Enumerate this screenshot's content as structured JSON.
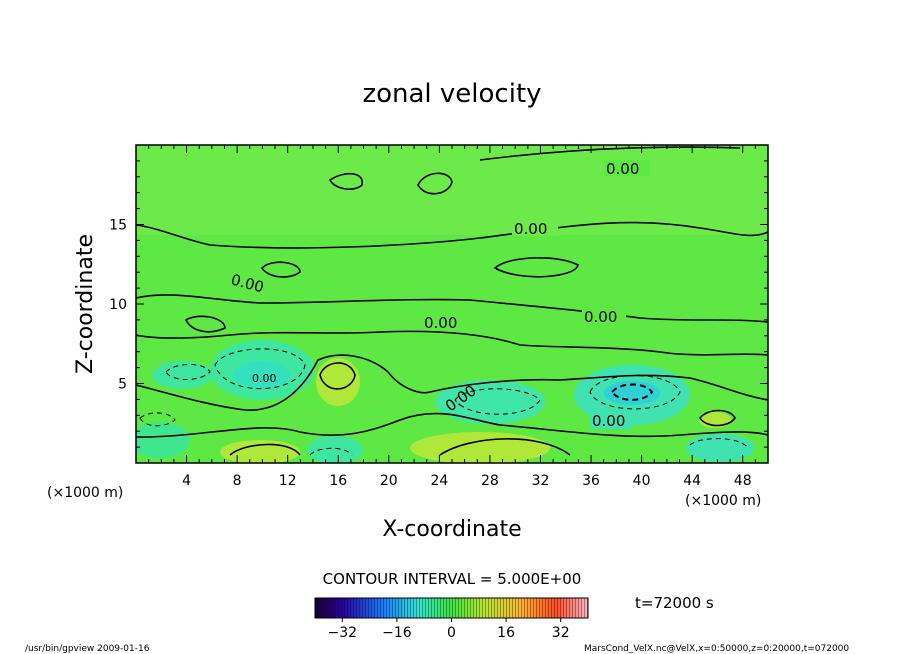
{
  "chart_data": {
    "type": "heatmap",
    "title": "zonal velocity",
    "xlabel": "X-coordinate",
    "ylabel": "Z-coordinate",
    "x_unit": "(×1000 m)",
    "y_unit": "(×1000 m)",
    "xlim": [
      0,
      50
    ],
    "ylim": [
      0,
      20
    ],
    "x_ticks": [
      4,
      8,
      12,
      16,
      20,
      24,
      28,
      32,
      36,
      40,
      44,
      48
    ],
    "y_ticks": [
      5,
      10,
      15
    ],
    "contour_interval_text": "CONTOUR INTERVAL = 5.000E+00",
    "contour_labels": [
      "0.00",
      "0.00",
      "0.00",
      "0.00",
      "0.00",
      "0.00",
      "0.00",
      "0.00"
    ],
    "colorbar": {
      "range": [
        -40,
        40
      ],
      "ticks": [
        -32,
        -16,
        0,
        16,
        32
      ]
    },
    "time_text": "t=72000 s"
  },
  "footer": {
    "left": "/usr/bin/gpview  2009-01-16",
    "right": "MarsCond_VelX.nc@VelX,x=0:50000,z=0:20000,t=072000"
  }
}
